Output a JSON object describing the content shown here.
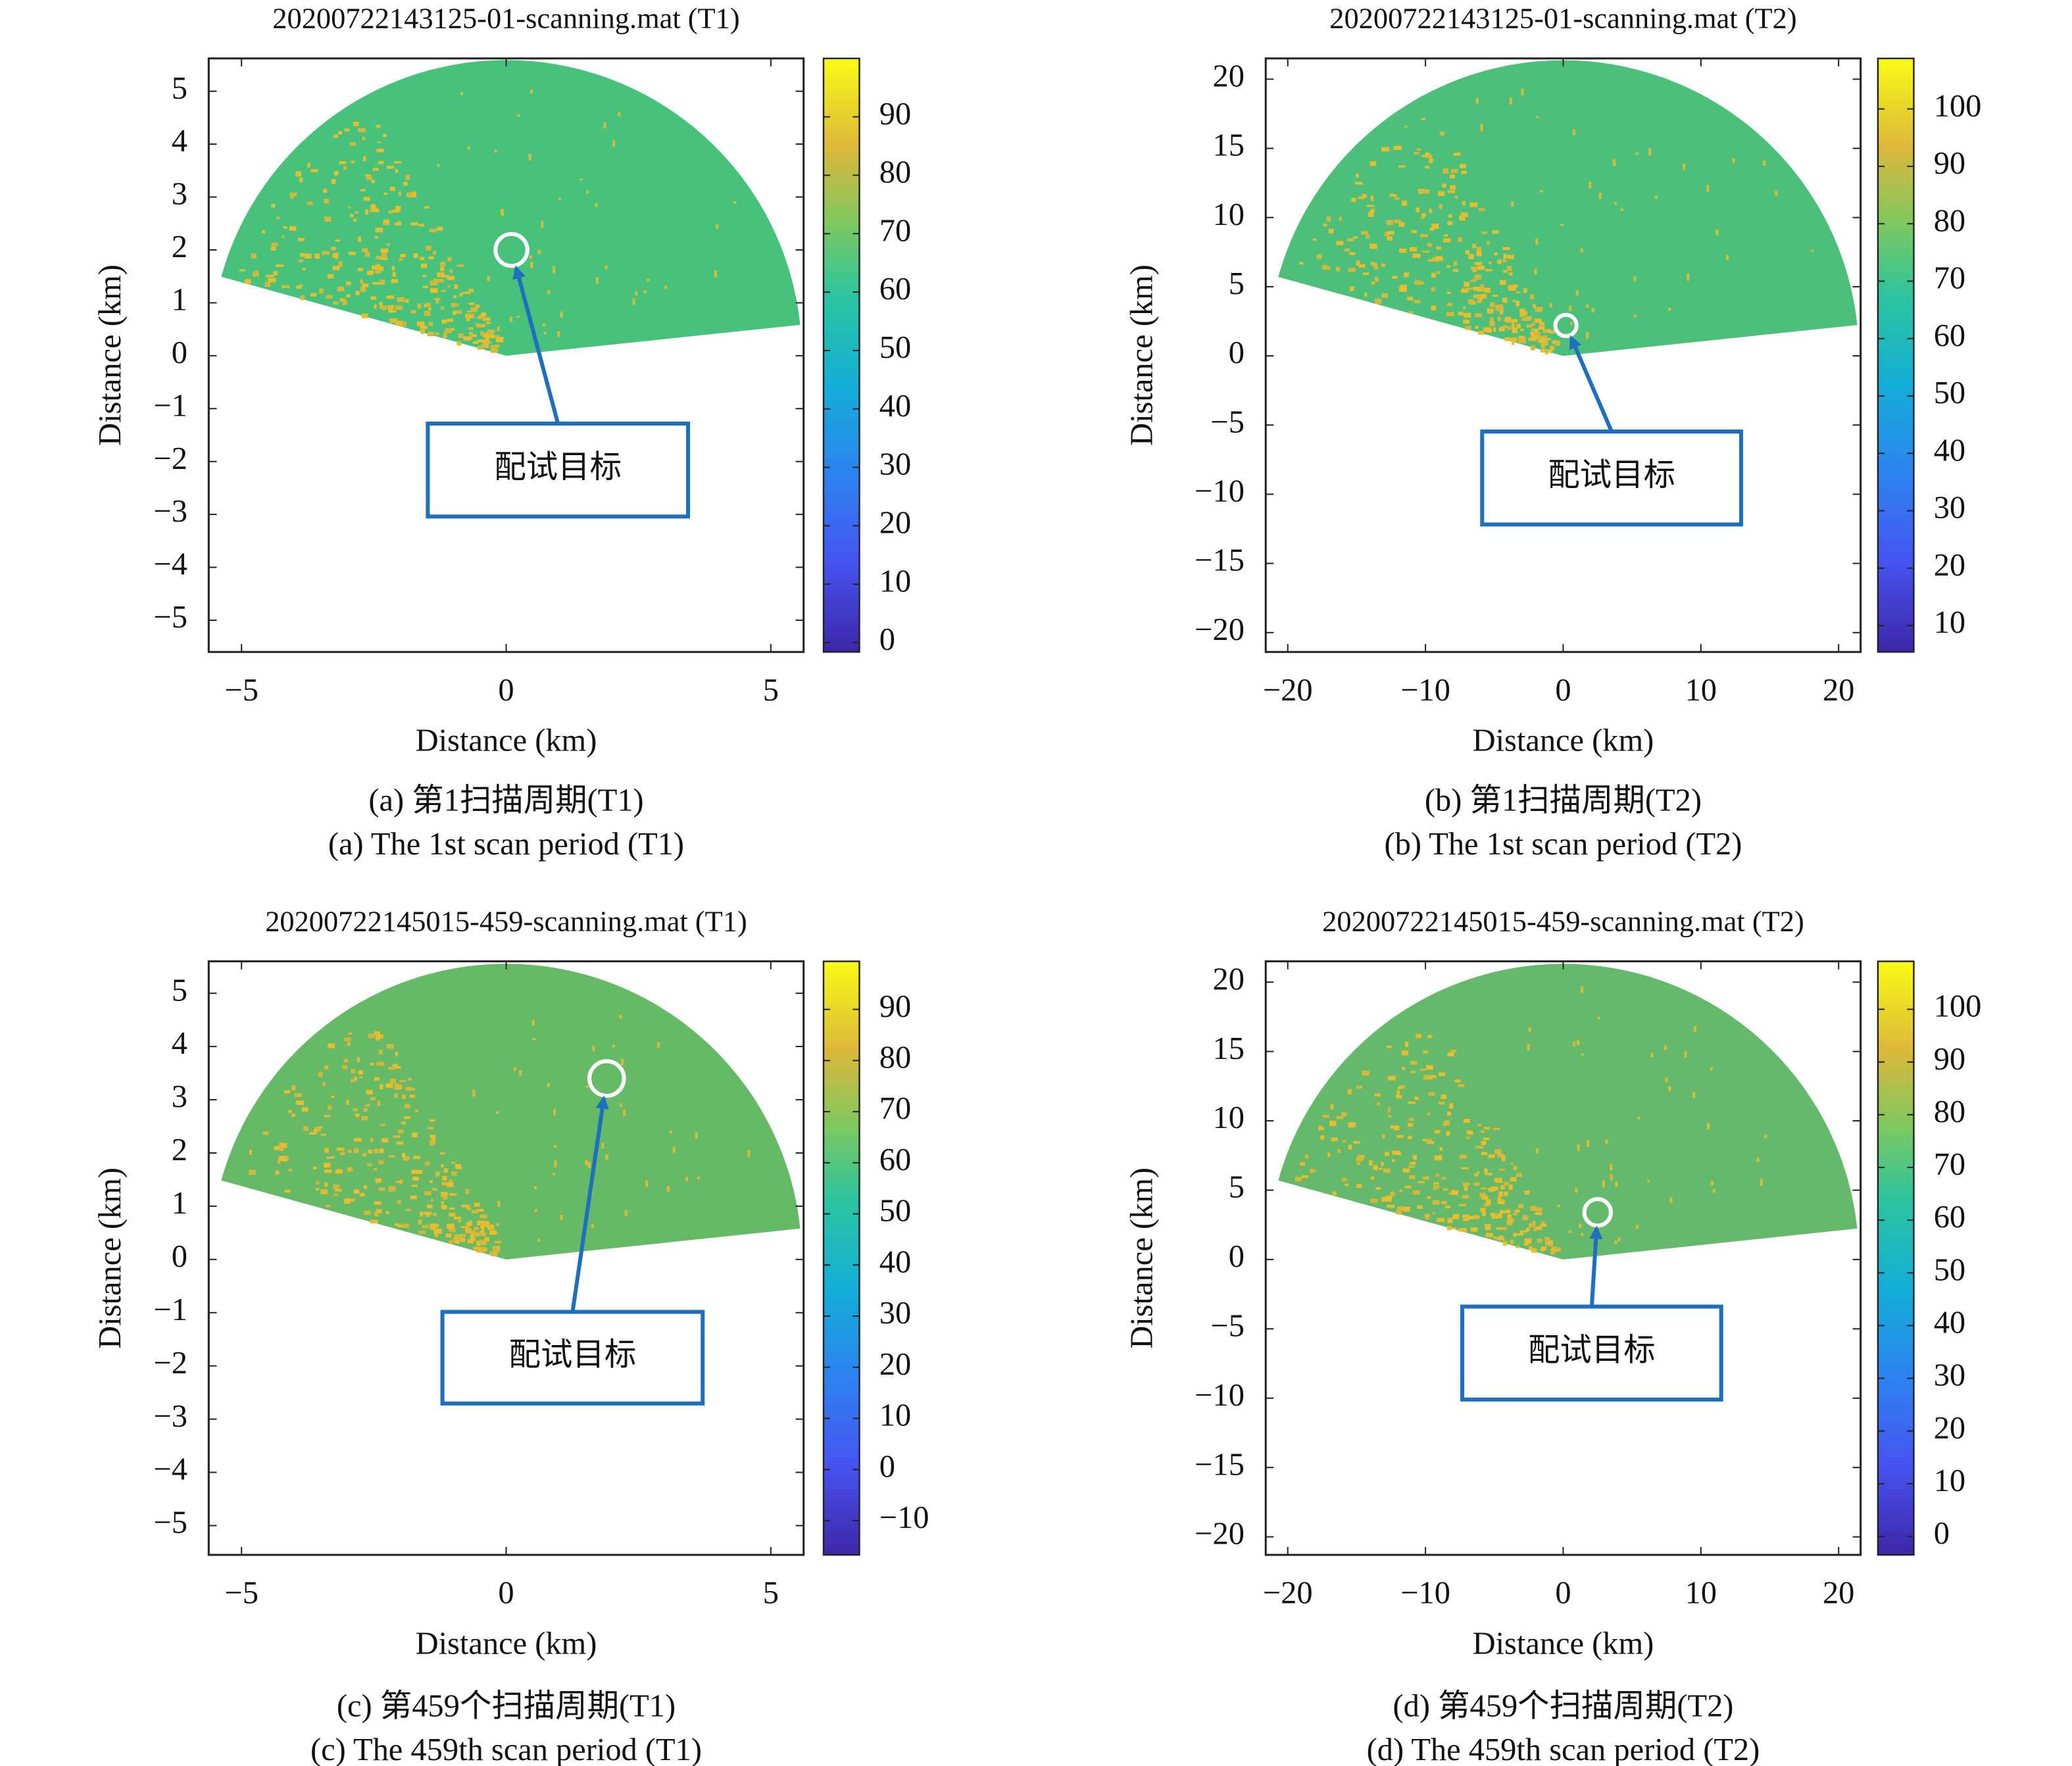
{
  "chart_data": [
    {
      "type": "image",
      "title": "20200722143125-01-scanning.mat (T1)",
      "xlabel": "Distance (km)",
      "ylabel": "Distance (km)",
      "xlim": [
        -5.62,
        5.62
      ],
      "ylim": [
        -5.6,
        5.62
      ],
      "xticks": [
        {
          "value": -5,
          "label": "−5"
        },
        0,
        5
      ],
      "yticks": [
        {
          "value": -5,
          "label": "−5"
        },
        {
          "value": -4,
          "label": "−4"
        },
        {
          "value": -3,
          "label": "−3"
        },
        {
          "value": -2,
          "label": "−2"
        },
        {
          "value": -1,
          "label": "−1"
        },
        0,
        1,
        2,
        3,
        4,
        5
      ],
      "clim": [
        -1.6,
        100
      ],
      "cticks": [
        0,
        10,
        20,
        30,
        40,
        50,
        60,
        70,
        80,
        90
      ],
      "color": "#47c27d",
      "annotation": "配试目标",
      "target": {
        "x": 0.1,
        "y": 2.0
      },
      "caption_cn": "(a) 第1扫描周期(T1)",
      "caption_en": "(a) The 1st scan period (T1)"
    },
    {
      "type": "image",
      "title": "20200722143125-01-scanning.mat (T2)",
      "xlabel": "Distance (km)",
      "ylabel": "Distance (km)",
      "xlim": [
        -21.6,
        21.6
      ],
      "ylim": [
        -21.4,
        21.5
      ],
      "xticks": [
        {
          "value": -20,
          "label": "−20"
        },
        {
          "value": -10,
          "label": "−10"
        },
        0,
        10,
        20
      ],
      "yticks": [
        {
          "value": -20,
          "label": "−20"
        },
        {
          "value": -15,
          "label": "−15"
        },
        {
          "value": -10,
          "label": "−10"
        },
        {
          "value": -5,
          "label": "−5"
        },
        0,
        5,
        10,
        15,
        20
      ],
      "clim": [
        5.4,
        108.8
      ],
      "cticks": [
        10,
        20,
        30,
        40,
        50,
        60,
        70,
        80,
        90,
        100
      ],
      "color": "#4cc07a",
      "annotation": "配试目标",
      "target": {
        "x": 0.2,
        "y": 2.2
      },
      "caption_cn": "(b) 第1扫描周期(T2)",
      "caption_en": "(b) The 1st scan period (T2)"
    },
    {
      "type": "image",
      "title": "20200722145015-459-scanning.mat (T1)",
      "xlabel": "Distance (km)",
      "ylabel": "Distance (km)",
      "xlim": [
        -5.62,
        5.62
      ],
      "ylim": [
        -5.55,
        5.6
      ],
      "xticks": [
        {
          "value": -5,
          "label": "−5"
        },
        0,
        5
      ],
      "yticks": [
        {
          "value": -5,
          "label": "−5"
        },
        {
          "value": -4,
          "label": "−4"
        },
        {
          "value": -3,
          "label": "−3"
        },
        {
          "value": -2,
          "label": "−2"
        },
        {
          "value": -1,
          "label": "−1"
        },
        0,
        1,
        2,
        3,
        4,
        5
      ],
      "clim": [
        -16.7,
        99.4
      ],
      "cticks": [
        {
          "value": -10,
          "label": "−10"
        },
        0,
        10,
        20,
        30,
        40,
        50,
        60,
        70,
        80,
        90
      ],
      "color": "#66b966",
      "annotation": "配试目标",
      "target": {
        "x": 1.9,
        "y": 3.4
      },
      "caption_cn": "(c) 第459个扫描周期(T1)",
      "caption_en": "(c) The 459th scan period (T1)"
    },
    {
      "type": "image",
      "title": "20200722145015-459-scanning.mat (T2)",
      "xlabel": "Distance (km)",
      "ylabel": "Distance (km)",
      "xlim": [
        -21.6,
        21.6
      ],
      "ylim": [
        -21.3,
        21.5
      ],
      "xticks": [
        {
          "value": -20,
          "label": "−20"
        },
        {
          "value": -10,
          "label": "−10"
        },
        0,
        10,
        20
      ],
      "yticks": [
        {
          "value": -20,
          "label": "−20"
        },
        {
          "value": -15,
          "label": "−15"
        },
        {
          "value": -10,
          "label": "−10"
        },
        {
          "value": -5,
          "label": "−5"
        },
        0,
        5,
        10,
        15,
        20
      ],
      "clim": [
        -3.5,
        109.1
      ],
      "cticks": [
        0,
        10,
        20,
        30,
        40,
        50,
        60,
        70,
        80,
        90,
        100
      ],
      "color": "#64b96a",
      "annotation": "配试目标",
      "target": {
        "x": 2.5,
        "y": 3.4
      },
      "caption_cn": "(d) 第459个扫描周期(T2)",
      "caption_en": "(d) The 459th scan period (T2)"
    }
  ]
}
